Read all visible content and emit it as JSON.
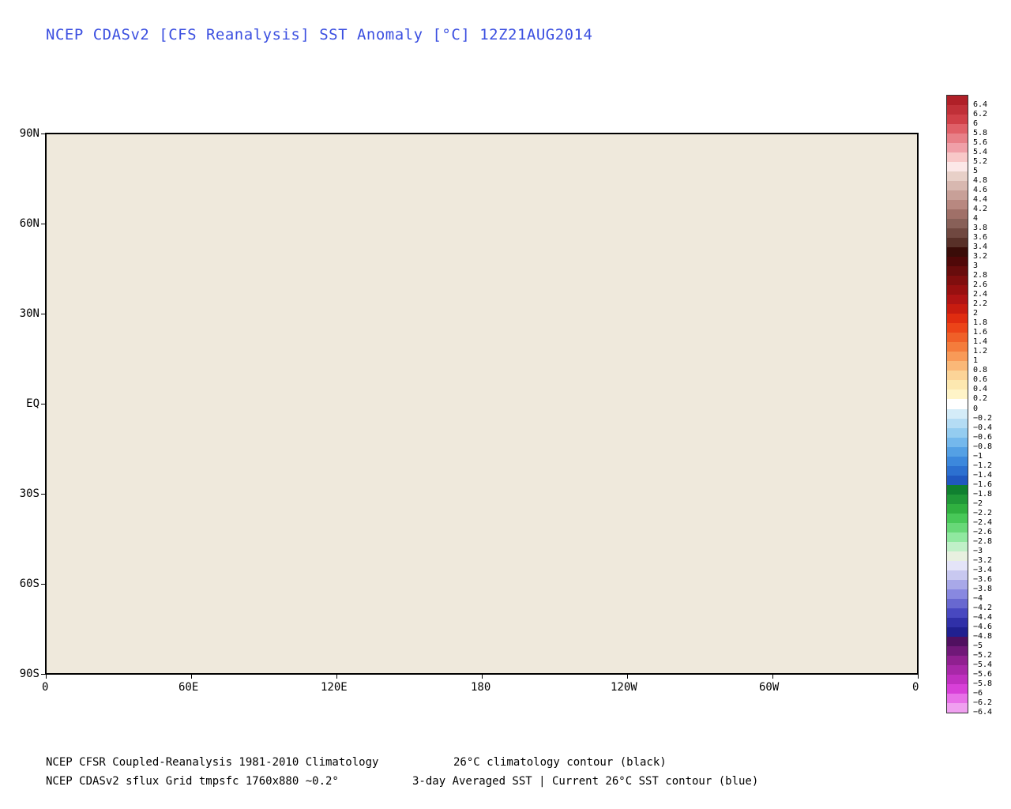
{
  "title": "NCEP CDASv2 [CFS Reanalysis] SST Anomaly [°C] 12Z21AUG2014",
  "axes": {
    "y_ticks": [
      "90N",
      "60N",
      "30N",
      "EQ",
      "30S",
      "60S",
      "90S"
    ],
    "x_ticks": [
      "0",
      "60E",
      "120E",
      "180",
      "120W",
      "60W",
      "0"
    ]
  },
  "colorbar": {
    "labels": [
      "6.4",
      "6.2",
      "6",
      "5.8",
      "5.6",
      "5.4",
      "5.2",
      "5",
      "4.8",
      "4.6",
      "4.4",
      "4.2",
      "4",
      "3.8",
      "3.6",
      "3.4",
      "3.2",
      "3",
      "2.8",
      "2.6",
      "2.4",
      "2.2",
      "2",
      "1.8",
      "1.6",
      "1.4",
      "1.2",
      "1",
      "0.8",
      "0.6",
      "0.4",
      "0.2",
      "0",
      "−0.2",
      "−0.4",
      "−0.6",
      "−0.8",
      "−1",
      "−1.2",
      "−1.4",
      "−1.6",
      "−1.8",
      "−2",
      "−2.2",
      "−2.4",
      "−2.6",
      "−2.8",
      "−3",
      "−3.2",
      "−3.4",
      "−3.6",
      "−3.8",
      "−4",
      "−4.2",
      "−4.4",
      "−4.6",
      "−4.8",
      "−5",
      "−5.2",
      "−5.4",
      "−5.6",
      "−5.8",
      "−6",
      "−6.2",
      "−6.4"
    ],
    "colors": [
      "#b02028",
      "#c03038",
      "#d04048",
      "#e06068",
      "#e88088",
      "#f0a0a8",
      "#f8c8c8",
      "#fce8e8",
      "#e8d0c8",
      "#d8b8b0",
      "#c8a098",
      "#b88880",
      "#a07068",
      "#886058",
      "#704840",
      "#583028",
      "#3a0c08",
      "#500808",
      "#680c0c",
      "#800e0e",
      "#981010",
      "#b01414",
      "#c81c10",
      "#e02c10",
      "#ec4418",
      "#f06028",
      "#f47c3c",
      "#f89a58",
      "#fab878",
      "#fcd498",
      "#fde8b0",
      "#fff4c8",
      "#ffffff",
      "#d4ecf8",
      "#b4dcf4",
      "#94ccf0",
      "#74b8ec",
      "#54a0e4",
      "#3c88dc",
      "#2c70d0",
      "#2058c0",
      "#108030",
      "#209838",
      "#30b040",
      "#48c858",
      "#68d878",
      "#90e8a0",
      "#c0f0c8",
      "#e8f0e0",
      "#e4e4f8",
      "#c8c8f0",
      "#a8a8e8",
      "#8888e0",
      "#6868d0",
      "#4848c0",
      "#3030a8",
      "#202090",
      "#501060",
      "#701878",
      "#902090",
      "#a828a8",
      "#c030c0",
      "#d840d8",
      "#e870e8",
      "#f0a0f0"
    ]
  },
  "footer": {
    "line1_left": "NCEP CFSR Coupled-Reanalysis 1981-2010 Climatology",
    "line1_right": "26°C climatology contour (black)",
    "line2_left": "NCEP CDASv2 sflux Grid tmpsfc 1760x880 ~0.2°",
    "line2_right": "3-day Averaged SST | Current 26°C SST contour (blue)"
  }
}
